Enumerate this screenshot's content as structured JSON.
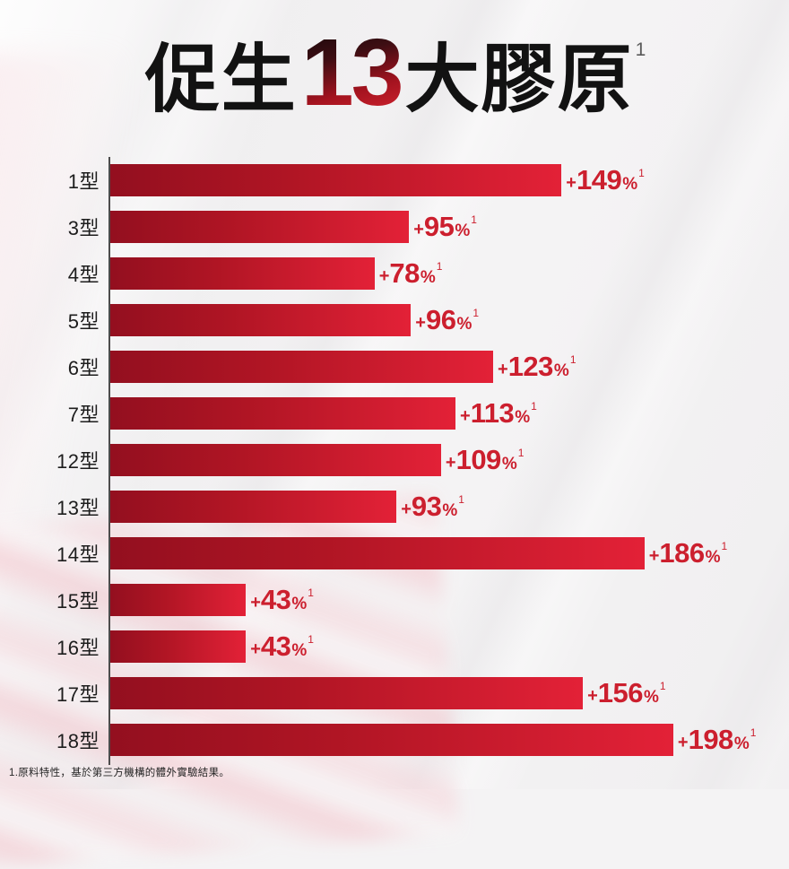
{
  "title": {
    "prefix": "促生",
    "highlight_number": "13",
    "suffix": "大膠原",
    "superscript": "1"
  },
  "footnote": "1.原料特性，基於第三方機構的體外實驗結果。",
  "colors": {
    "background": "#f4f3f4",
    "bar_gradient_dark": "#930f1f",
    "bar_gradient_bright": "#e32137",
    "value_red": "#cc1f2e",
    "label_dark": "#1d1d1d",
    "axis_gray": "#4c4c4c",
    "title_black": "#121212",
    "title_number_gradient_top": "#17070a",
    "title_number_gradient_bottom": "#d42430",
    "corner_pink": "#f4c6cd"
  },
  "chart_data": {
    "type": "bar",
    "orientation": "horizontal",
    "title": "促生13大膠原",
    "xlabel": "",
    "ylabel": "",
    "xlim": [
      0,
      220
    ],
    "grid": false,
    "legend": "none",
    "categories": [
      "1型",
      "3型",
      "4型",
      "5型",
      "6型",
      "7型",
      "12型",
      "13型",
      "14型",
      "15型",
      "16型",
      "17型",
      "18型"
    ],
    "values": [
      149,
      95,
      78,
      96,
      123,
      113,
      109,
      93,
      186,
      43,
      43,
      156,
      198
    ],
    "value_prefix": "+",
    "percent_sign": "%",
    "value_superscript": "1",
    "value_labels": [
      "+149%",
      "+95%",
      "+78%",
      "+96%",
      "+123%",
      "+113%",
      "+109%",
      "+93%",
      "+186%",
      "+43%",
      "+43%",
      "+156%",
      "+198%"
    ],
    "bar_pct": [
      71.9,
      47.6,
      42.1,
      47.9,
      61.0,
      55.0,
      52.7,
      45.6,
      85.1,
      21.6,
      21.6,
      75.3,
      89.7
    ]
  }
}
